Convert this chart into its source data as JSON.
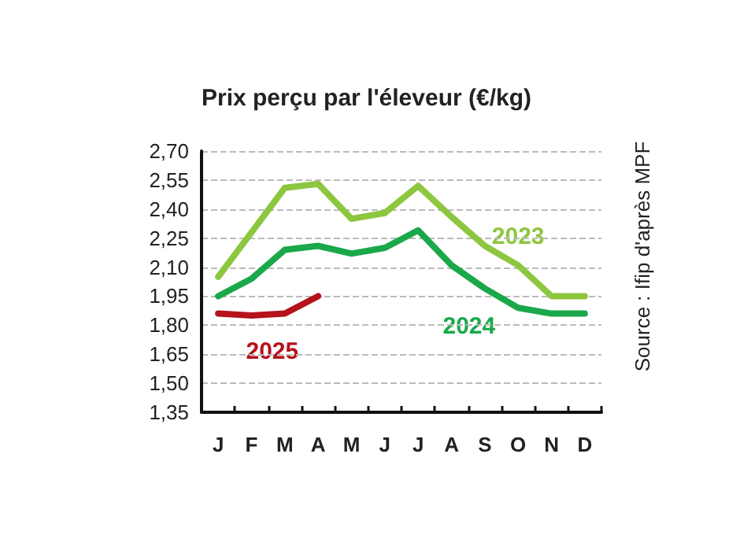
{
  "chart_data": {
    "type": "line",
    "title": "Prix perçu par l'éleveur (€/kg)",
    "categories": [
      "J",
      "F",
      "M",
      "A",
      "M",
      "J",
      "J",
      "A",
      "S",
      "O",
      "N",
      "D"
    ],
    "series": [
      {
        "name": "2023",
        "color": "#8dc63f",
        "values": [
          2.05,
          2.28,
          2.51,
          2.53,
          2.35,
          2.38,
          2.52,
          2.36,
          2.21,
          2.11,
          1.95,
          1.95
        ]
      },
      {
        "name": "2024",
        "color": "#1aa84a",
        "values": [
          1.95,
          2.04,
          2.19,
          2.21,
          2.17,
          2.2,
          2.29,
          2.11,
          1.99,
          1.89,
          1.86,
          1.86
        ]
      },
      {
        "name": "2025",
        "color": "#b5121b",
        "values": [
          1.86,
          1.85,
          1.86,
          1.95,
          null,
          null,
          null,
          null,
          null,
          null,
          null,
          null
        ]
      }
    ],
    "ylim": [
      1.35,
      2.7
    ],
    "yticks": [
      {
        "value": 1.35,
        "label": "1,35"
      },
      {
        "value": 1.5,
        "label": "1,50"
      },
      {
        "value": 1.65,
        "label": "1,65"
      },
      {
        "value": 1.8,
        "label": "1,80"
      },
      {
        "value": 1.95,
        "label": "1,95"
      },
      {
        "value": 2.1,
        "label": "2,10"
      },
      {
        "value": 2.25,
        "label": "2,25"
      },
      {
        "value": 2.4,
        "label": "2,40"
      },
      {
        "value": 2.55,
        "label": "2,55"
      },
      {
        "value": 2.7,
        "label": "2,70"
      }
    ],
    "grid": "y",
    "legend": false,
    "marker": "none",
    "line_style": "solid",
    "annotations": [
      "Source : Ifip d'après MPF"
    ]
  }
}
